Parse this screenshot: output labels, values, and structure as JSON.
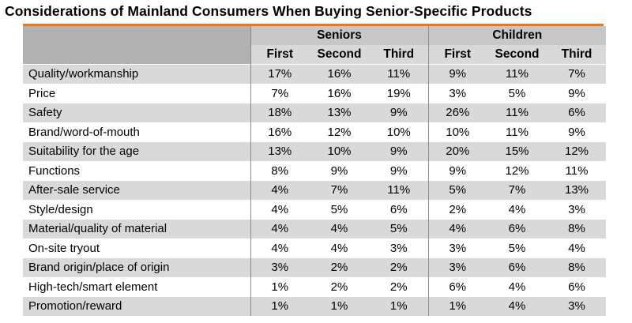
{
  "chart_data": {
    "type": "table",
    "title": "Considerations of Mainland Consumers When Buying Senior-Specific Products",
    "groups": [
      "Seniors",
      "Children"
    ],
    "columns": [
      "First",
      "Second",
      "Third"
    ],
    "rows": [
      {
        "label": "Quality/workmanship",
        "values": [
          "17%",
          "16%",
          "11%",
          "9%",
          "11%",
          "7%"
        ]
      },
      {
        "label": "Price",
        "values": [
          "7%",
          "16%",
          "19%",
          "3%",
          "5%",
          "9%"
        ]
      },
      {
        "label": "Safety",
        "values": [
          "18%",
          "13%",
          "9%",
          "26%",
          "11%",
          "6%"
        ]
      },
      {
        "label": "Brand/word-of-mouth",
        "values": [
          "16%",
          "12%",
          "10%",
          "10%",
          "11%",
          "9%"
        ]
      },
      {
        "label": "Suitability for the age",
        "values": [
          "13%",
          "10%",
          "9%",
          "20%",
          "15%",
          "12%"
        ]
      },
      {
        "label": "Functions",
        "values": [
          "8%",
          "9%",
          "9%",
          "9%",
          "12%",
          "11%"
        ]
      },
      {
        "label": "After-sale service",
        "values": [
          "4%",
          "7%",
          "11%",
          "5%",
          "7%",
          "13%"
        ]
      },
      {
        "label": "Style/design",
        "values": [
          "4%",
          "5%",
          "6%",
          "2%",
          "4%",
          "3%"
        ]
      },
      {
        "label": "Material/quality of material",
        "values": [
          "4%",
          "4%",
          "5%",
          "4%",
          "6%",
          "8%"
        ]
      },
      {
        "label": "On-site tryout",
        "values": [
          "4%",
          "4%",
          "3%",
          "3%",
          "5%",
          "4%"
        ]
      },
      {
        "label": "Brand origin/place of origin",
        "values": [
          "3%",
          "2%",
          "2%",
          "3%",
          "6%",
          "8%"
        ]
      },
      {
        "label": "High-tech/smart element",
        "values": [
          "1%",
          "2%",
          "2%",
          "6%",
          "4%",
          "6%"
        ]
      },
      {
        "label": "Promotion/reward",
        "values": [
          "1%",
          "1%",
          "1%",
          "1%",
          "4%",
          "3%"
        ]
      }
    ],
    "colors": {
      "accent_rule": "#e87722",
      "header_dark": "#b2b2b2",
      "header_group": "#c7c7c7",
      "row_shade": "#d9d9d9",
      "row_plain": "#ffffff"
    }
  }
}
